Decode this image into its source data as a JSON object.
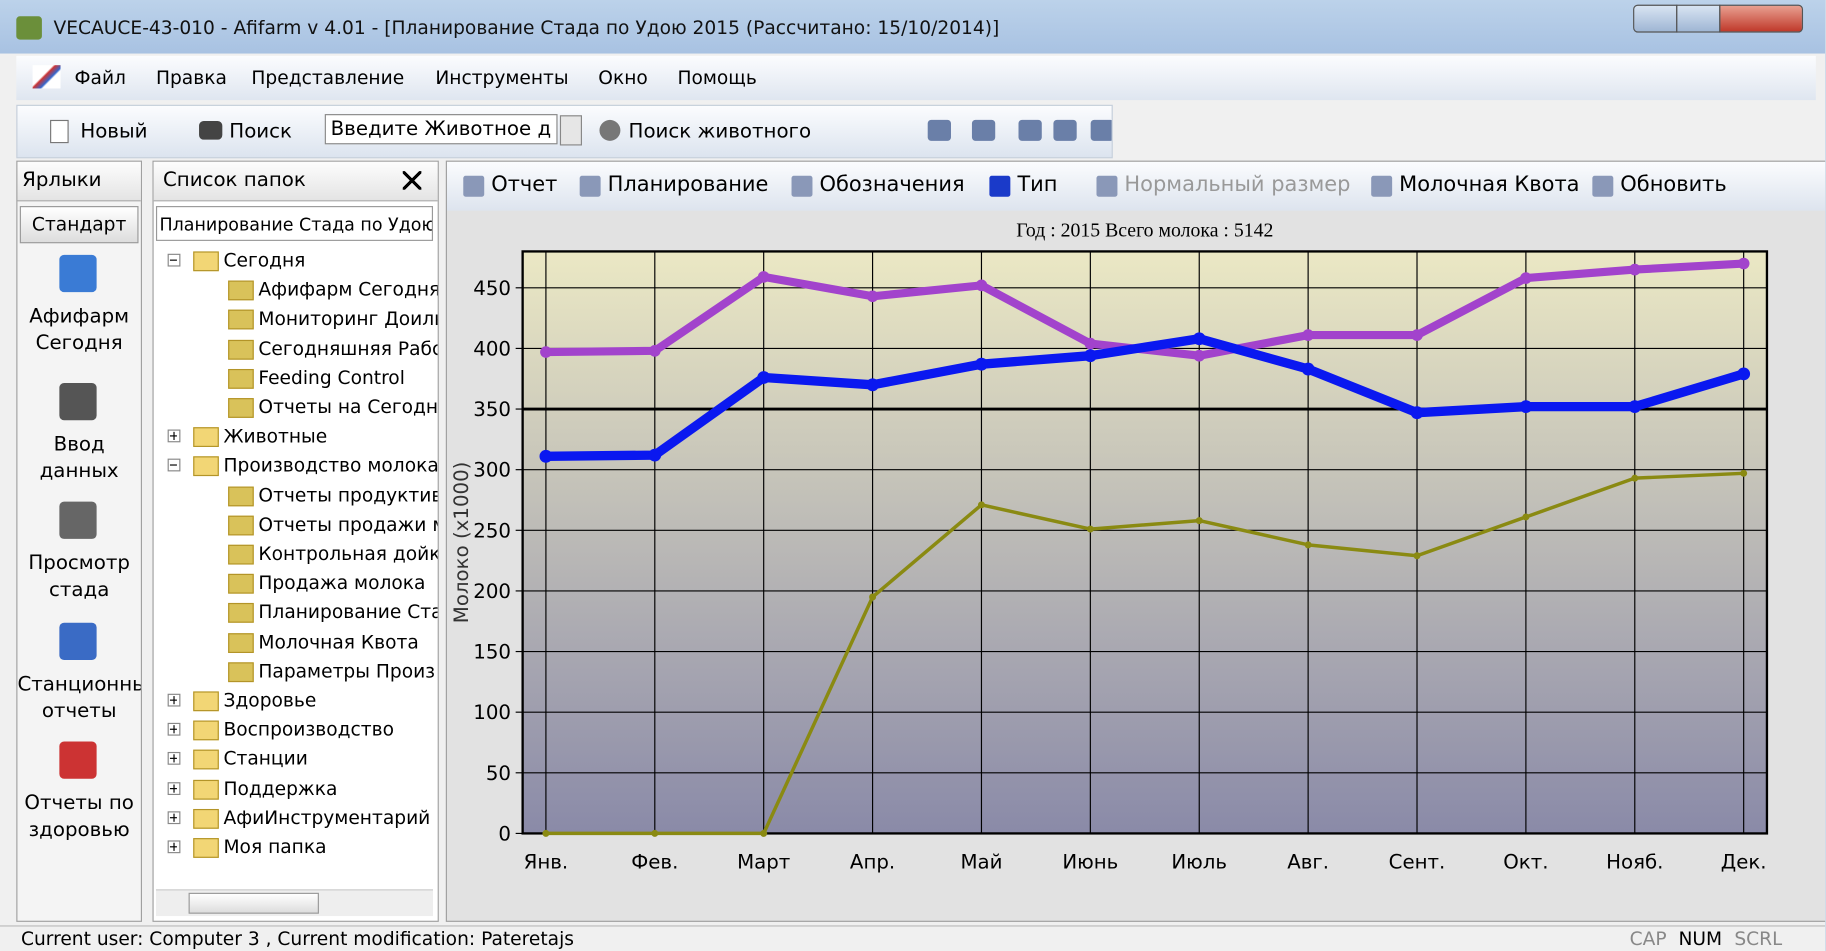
{
  "window": {
    "title": "VECAUCE-43-010 - Afifarm v 4.01  - [Планирование Стада по Удою    2015    (Рассчитано: 15/10/2014)]"
  },
  "menu": [
    "Файл",
    "Правка",
    "Представление",
    "Инструменты",
    "Окно",
    "Помощь"
  ],
  "toolbar": {
    "new": "Новый",
    "search": "Поиск",
    "animal_input": "Введите Животное д",
    "animal_search": "Поиск животного"
  },
  "shortcuts": {
    "title": "Ярлыки",
    "group": "Стандарт",
    "items": [
      "Афифарм Сегодня",
      "Ввод данных",
      "Просмотр стада",
      "Станционнь отчеты",
      "Отчеты по здоровью"
    ]
  },
  "folders": {
    "title": "Список папок",
    "path": "Планирование Стада по Удою",
    "tree": [
      {
        "label": "Сегодня",
        "level": 0,
        "open": true
      },
      {
        "label": "Афифарм Сегодня",
        "level": 1
      },
      {
        "label": "Мониторинг Доиль",
        "level": 1
      },
      {
        "label": "Сегодняшняя Рабс",
        "level": 1
      },
      {
        "label": "Feeding Control",
        "level": 1
      },
      {
        "label": "Отчеты на Сегодня",
        "level": 1
      },
      {
        "label": "Животные",
        "level": 0,
        "open": false
      },
      {
        "label": "Производство молока",
        "level": 0,
        "open": true
      },
      {
        "label": "Отчеты продуктиві",
        "level": 1
      },
      {
        "label": "Отчеты продажи м",
        "level": 1
      },
      {
        "label": "Контрольная дойк",
        "level": 1
      },
      {
        "label": "Продажа молока",
        "level": 1
      },
      {
        "label": "Планирование Ста",
        "level": 1
      },
      {
        "label": "Молочная Квота",
        "level": 1
      },
      {
        "label": "Параметры Произ",
        "level": 1
      },
      {
        "label": "Здоровье",
        "level": 0,
        "open": false
      },
      {
        "label": "Воспроизводство",
        "level": 0,
        "open": false
      },
      {
        "label": "Станции",
        "level": 0,
        "open": false
      },
      {
        "label": "Поддержка",
        "level": 0,
        "open": false
      },
      {
        "label": "АфиИнструментарий",
        "level": 0,
        "open": false
      },
      {
        "label": "Моя папка",
        "level": 0,
        "open": false
      }
    ]
  },
  "chart_toolbar": [
    "Отчет",
    "Планирование",
    "Обозначения",
    "Тип",
    "Нормальный размер",
    "Молочная Квота",
    "Обновить"
  ],
  "chart_data": {
    "type": "line",
    "title": "Год : 2015    Всего молока : 5142",
    "ylabel": "Молоко (x1000)",
    "categories": [
      "Янв.",
      "Фев.",
      "Март",
      "Апр.",
      "Май",
      "Июнь",
      "Июль",
      "Авг.",
      "Сент.",
      "Окт.",
      "Нояб.",
      "Дек."
    ],
    "series": [
      {
        "color": "#a243cc",
        "width": 7,
        "values": [
          397,
          398,
          459,
          443,
          452,
          404,
          394,
          411,
          411,
          458,
          465,
          470
        ]
      },
      {
        "color": "#0a18f0",
        "width": 8,
        "values": [
          311,
          312,
          376,
          370,
          387,
          394,
          408,
          383,
          347,
          352,
          352,
          379
        ]
      },
      {
        "color": "#8a8a12",
        "width": 3,
        "values": [
          0,
          0,
          0,
          195,
          271,
          251,
          258,
          238,
          229,
          261,
          293,
          297
        ]
      }
    ],
    "ylim": [
      0,
      480
    ],
    "yticks": [
      0,
      50,
      100,
      150,
      200,
      250,
      300,
      350,
      400,
      450
    ],
    "reference_line": 350,
    "grid": true
  },
  "status": {
    "text": "Current user: Computer 3 , Current modification: Pateretajs",
    "indicators": [
      "CAP",
      "NUM",
      "SCRL"
    ]
  }
}
